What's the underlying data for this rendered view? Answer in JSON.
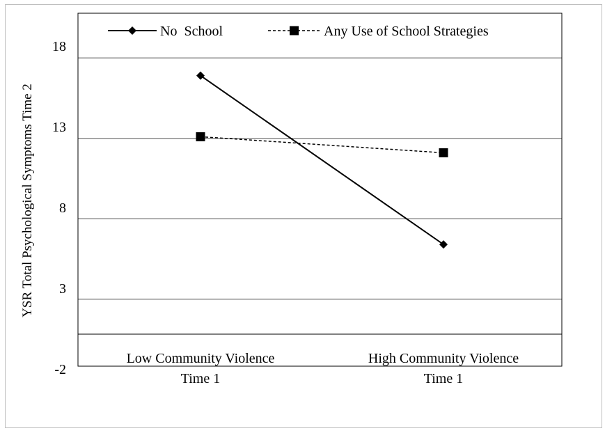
{
  "chart_data": {
    "type": "line",
    "title": "",
    "ylabel": "YSR Total Psychological Symptoms Time  2",
    "xlabel": "",
    "categories": [
      [
        "Low Community Violence",
        "Time 1"
      ],
      [
        "High Community Violence",
        "Time 1"
      ]
    ],
    "yticks": [
      "18",
      "13",
      "8",
      "3",
      "-2"
    ],
    "ylim": [
      -2,
      20
    ],
    "grid": true,
    "legend_position": "top",
    "series": [
      {
        "name": "No  School",
        "values": [
          16.9,
          6.4
        ],
        "line": "solid",
        "marker": "diamond",
        "color": "#000000"
      },
      {
        "name": "Any Use of School Strategies",
        "values": [
          13.1,
          12.1
        ],
        "line": "dashed",
        "marker": "square",
        "color": "#000000"
      }
    ]
  }
}
